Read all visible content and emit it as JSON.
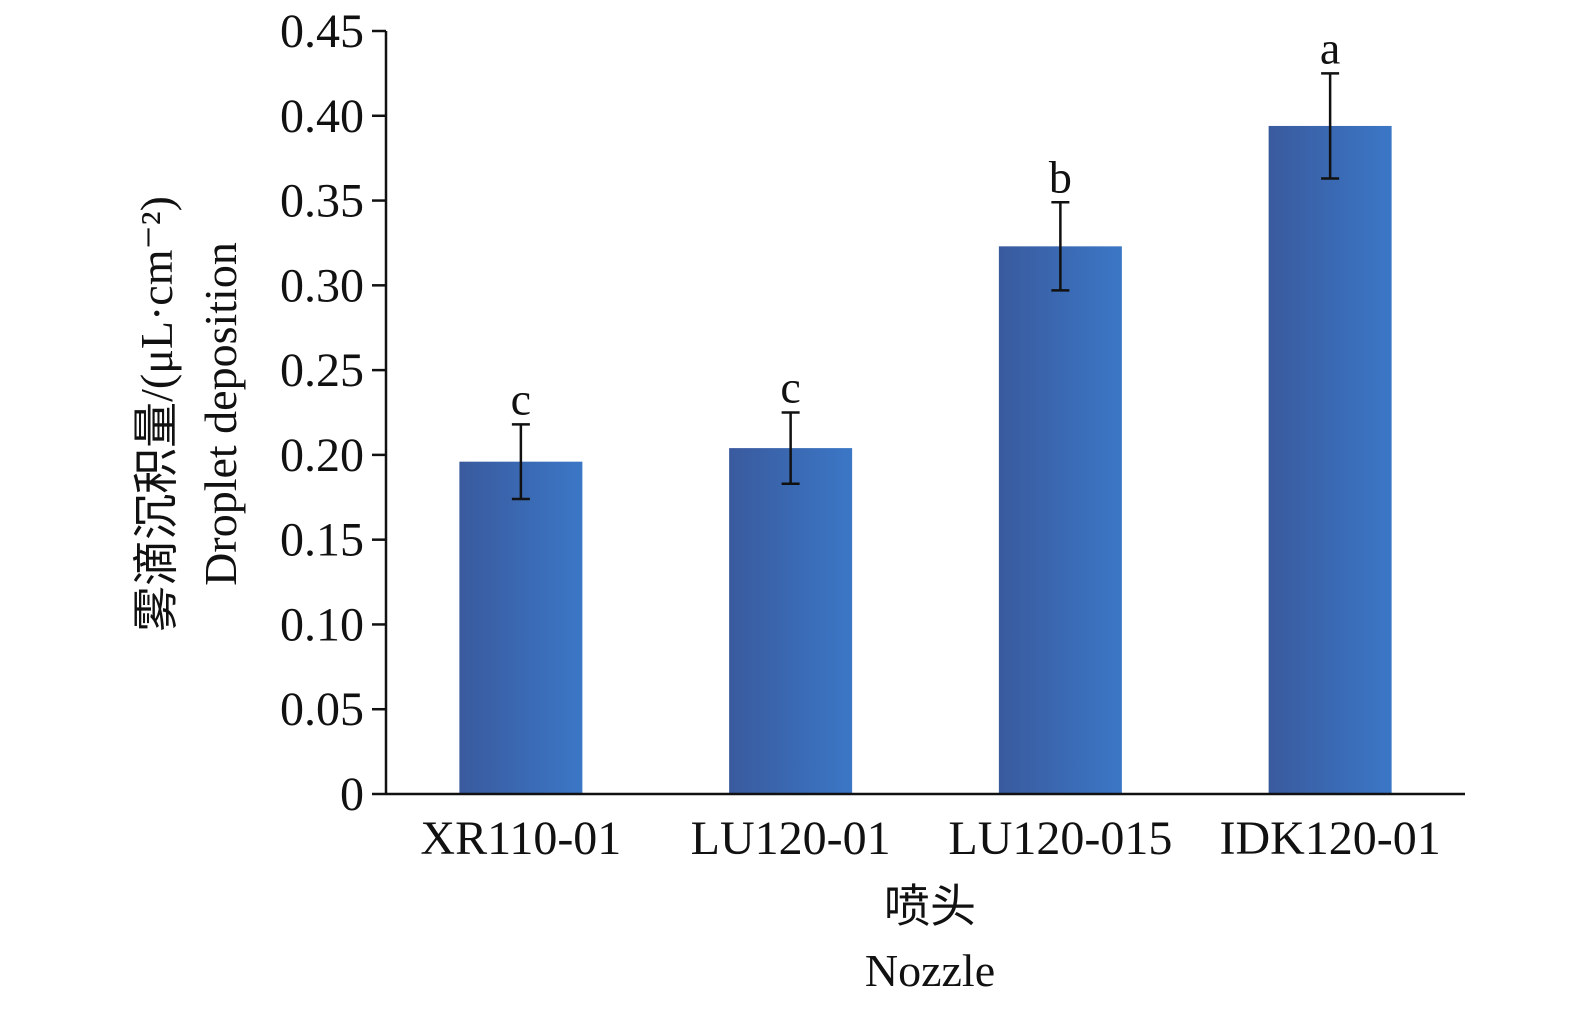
{
  "chart_data": {
    "type": "bar",
    "title": "",
    "categories": [
      "XR110-01",
      "LU120-01",
      "LU120-015",
      "IDK120-01"
    ],
    "values": [
      0.196,
      0.204,
      0.323,
      0.394
    ],
    "error": [
      0.022,
      0.021,
      0.026,
      0.031
    ],
    "significance_labels": [
      "c",
      "c",
      "b",
      "a"
    ],
    "xlabel_zh": "喷头",
    "xlabel_en": "Nozzle",
    "ylabel_zh": "雾滴沉积量/(μL·cm⁻²)",
    "ylabel_en": "Droplet deposition",
    "ylim": [
      0,
      0.45
    ],
    "yticks": [
      "0",
      "0.05",
      "0.10",
      "0.15",
      "0.20",
      "0.25",
      "0.30",
      "0.35",
      "0.40",
      "0.45"
    ],
    "ytick_values": [
      0,
      0.05,
      0.1,
      0.15,
      0.2,
      0.25,
      0.3,
      0.35,
      0.4,
      0.45
    ],
    "grid": false,
    "bar_color_dark": "#3a5a9e",
    "bar_color_light": "#3b77c6"
  }
}
